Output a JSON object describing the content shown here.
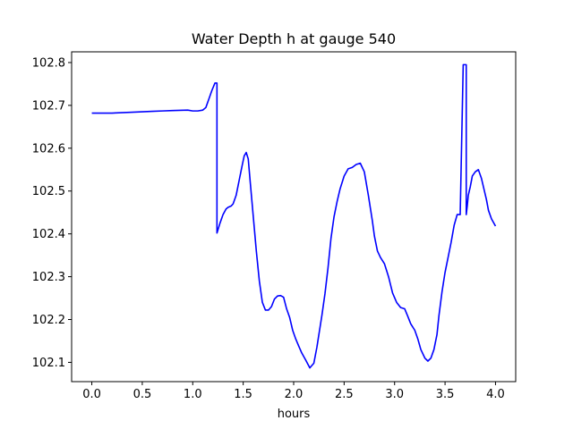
{
  "chart_data": {
    "type": "line",
    "title": "Water Depth h at gauge 540",
    "xlabel": "hours",
    "ylabel": "",
    "xlim": [
      -0.2,
      4.2
    ],
    "ylim": [
      102.055,
      102.825
    ],
    "xticks": [
      0.0,
      0.5,
      1.0,
      1.5,
      2.0,
      2.5,
      3.0,
      3.5,
      4.0
    ],
    "xtick_labels": [
      "0.0",
      "0.5",
      "1.0",
      "1.5",
      "2.0",
      "2.5",
      "3.0",
      "3.5",
      "4.0"
    ],
    "yticks": [
      102.1,
      102.2,
      102.3,
      102.4,
      102.5,
      102.6,
      102.7,
      102.8
    ],
    "ytick_labels": [
      "102.1",
      "102.2",
      "102.3",
      "102.4",
      "102.5",
      "102.6",
      "102.7",
      "102.8"
    ],
    "grid": false,
    "line_color": "#0000ff",
    "series": [
      {
        "x": [
          0.0,
          0.2,
          0.4,
          0.6,
          0.7,
          0.8,
          0.95,
          1.0,
          1.05,
          1.1,
          1.13,
          1.16,
          1.19,
          1.22,
          1.24,
          1.24,
          1.27,
          1.3,
          1.33,
          1.35,
          1.38,
          1.4,
          1.43,
          1.46,
          1.49,
          1.51,
          1.53,
          1.55,
          1.57,
          1.6,
          1.63,
          1.66,
          1.69,
          1.72,
          1.75,
          1.78,
          1.81,
          1.84,
          1.87,
          1.9,
          1.93,
          1.96,
          1.99,
          2.02,
          2.05,
          2.08,
          2.12,
          2.16,
          2.2,
          2.23,
          2.25,
          2.28,
          2.31,
          2.34,
          2.37,
          2.4,
          2.43,
          2.46,
          2.5,
          2.54,
          2.58,
          2.62,
          2.66,
          2.7,
          2.74,
          2.78,
          2.8,
          2.83,
          2.86,
          2.9,
          2.94,
          2.98,
          3.02,
          3.06,
          3.1,
          3.13,
          3.16,
          3.2,
          3.23,
          3.26,
          3.3,
          3.33,
          3.36,
          3.39,
          3.42,
          3.44,
          3.47,
          3.5,
          3.53,
          3.56,
          3.59,
          3.62,
          3.65,
          3.68,
          3.71,
          3.71,
          3.72,
          3.73,
          3.75,
          3.77,
          3.8,
          3.83,
          3.86,
          3.88,
          3.91,
          3.93,
          3.96,
          4.0
        ],
        "y": [
          102.682,
          102.682,
          102.684,
          102.686,
          102.687,
          102.688,
          102.689,
          102.687,
          102.687,
          102.689,
          102.695,
          102.715,
          102.735,
          102.752,
          102.752,
          102.402,
          102.425,
          102.445,
          102.458,
          102.462,
          102.465,
          102.47,
          102.49,
          102.525,
          102.56,
          102.582,
          102.59,
          102.575,
          102.52,
          102.44,
          102.36,
          102.29,
          102.24,
          102.222,
          102.222,
          102.23,
          102.248,
          102.255,
          102.256,
          102.252,
          102.225,
          102.205,
          102.175,
          102.155,
          102.138,
          102.122,
          102.105,
          102.087,
          102.098,
          102.135,
          102.165,
          102.21,
          102.26,
          102.32,
          102.39,
          102.44,
          102.475,
          102.505,
          102.535,
          102.552,
          102.555,
          102.562,
          102.565,
          102.545,
          102.49,
          102.43,
          102.395,
          102.36,
          102.345,
          102.33,
          102.3,
          102.262,
          102.24,
          102.228,
          102.225,
          102.208,
          102.19,
          102.175,
          102.155,
          102.13,
          102.11,
          102.103,
          102.11,
          102.13,
          102.165,
          102.21,
          102.265,
          102.31,
          102.345,
          102.38,
          102.42,
          102.445,
          102.445,
          102.795,
          102.795,
          102.445,
          102.465,
          102.49,
          102.51,
          102.535,
          102.545,
          102.55,
          102.53,
          102.51,
          102.48,
          102.455,
          102.435,
          102.418
        ]
      }
    ]
  }
}
